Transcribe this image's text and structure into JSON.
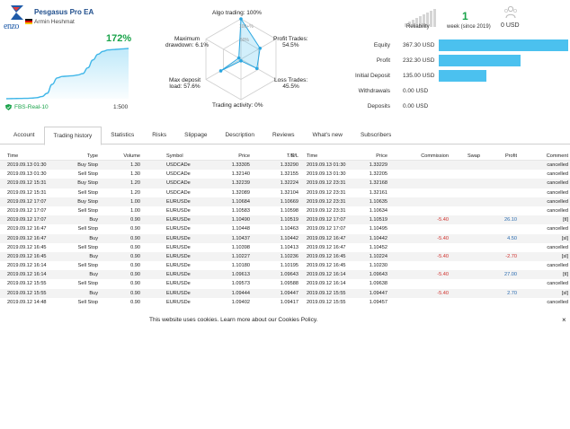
{
  "signal": {
    "title": "Pesgasus Pro EA",
    "author": "Armin Heshmat",
    "logo_text": "enzo",
    "growth": "172%",
    "broker": "FBS-Real-10",
    "leverage": "1:500",
    "growth_curve": [
      0,
      0.3,
      0.6,
      0.9,
      1.1,
      1.7,
      3,
      6,
      15,
      40,
      58,
      62,
      63,
      64,
      66,
      70,
      86,
      108,
      124,
      132,
      136,
      137,
      138,
      139,
      140
    ]
  },
  "radar": {
    "algo_trading": "Algo trading: 100%",
    "profit_trades": "Profit Trades:\n54.5%",
    "loss_trades": "Loss Trades:\n45.5%",
    "trading_activity": "Trading activity: 0%",
    "max_deposit_load": "Max deposit\nload: 57.6%",
    "max_drawdown": "Maximum\ndrawdown: 6.1%",
    "inner_label_100": "100+%",
    "inner_label_50": "50%",
    "values": [
      1.0,
      0.545,
      0.455,
      0.0,
      0.576,
      0.061
    ]
  },
  "summary": {
    "reliability": "Reliability",
    "weeks": "1",
    "weeks_label": "week (since 2019)",
    "subscribers_value": "0 USD"
  },
  "stats": [
    {
      "label": "Equity",
      "value": "367.30 USD",
      "fraction": 1.0
    },
    {
      "label": "Profit",
      "value": "232.30 USD",
      "fraction": 0.632
    },
    {
      "label": "Initial Deposit",
      "value": "135.00 USD",
      "fraction": 0.368
    },
    {
      "label": "Withdrawals",
      "value": "0.00 USD",
      "fraction": 0
    },
    {
      "label": "Deposits",
      "value": "0.00 USD",
      "fraction": 0
    }
  ],
  "tabs": [
    "Account",
    "Trading history",
    "Statistics",
    "Risks",
    "Slippage",
    "Description",
    "Reviews",
    "What's new",
    "Subscribers"
  ],
  "active_tab": 1,
  "table": {
    "headers": [
      "Time",
      "Type",
      "Volume",
      "Symbol",
      "Price",
      "S/L",
      "T/P",
      "Time",
      "Price",
      "Commission",
      "Swap",
      "Profit",
      "Comment"
    ],
    "rows": [
      [
        "2019.09.13 01:30",
        "Buy Stop",
        "1.30",
        "USDCADe",
        "1.33305",
        "1.33290",
        "",
        "2019.09.13 01:30",
        "1.33229",
        "",
        "",
        "",
        "cancelled"
      ],
      [
        "2019.09.13 01:30",
        "Sell Stop",
        "1.30",
        "USDCADe",
        "1.32140",
        "1.32155",
        "",
        "2019.09.13 01:30",
        "1.32205",
        "",
        "",
        "",
        "cancelled"
      ],
      [
        "2019.09.12 15:31",
        "Buy Stop",
        "1.20",
        "USDCADe",
        "1.32239",
        "1.32224",
        "",
        "2019.09.12 23:31",
        "1.32168",
        "",
        "",
        "",
        "cancelled"
      ],
      [
        "2019.09.12 15:31",
        "Sell Stop",
        "1.20",
        "USDCADe",
        "1.32089",
        "1.32104",
        "",
        "2019.09.12 23:31",
        "1.32161",
        "",
        "",
        "",
        "cancelled"
      ],
      [
        "2019.09.12 17:07",
        "Buy Stop",
        "1.00",
        "EURUSDe",
        "1.10684",
        "1.10669",
        "",
        "2019.09.12 23:31",
        "1.10635",
        "",
        "",
        "",
        "cancelled"
      ],
      [
        "2019.09.12 17:07",
        "Sell Stop",
        "1.00",
        "EURUSDe",
        "1.10583",
        "1.10598",
        "",
        "2019.09.12 23:31",
        "1.10634",
        "",
        "",
        "",
        "cancelled"
      ],
      [
        "2019.09.12 17:07",
        "Buy",
        "0.90",
        "EURUSDe",
        "1.10490",
        "1.10519",
        "",
        "2019.09.12 17:07",
        "1.10519",
        "-5.40",
        "",
        "26.10",
        "[tl]"
      ],
      [
        "2019.09.12 16:47",
        "Sell Stop",
        "0.90",
        "EURUSDe",
        "1.10448",
        "1.10463",
        "",
        "2019.09.12 17:07",
        "1.10495",
        "",
        "",
        "",
        "cancelled"
      ],
      [
        "2019.09.12 16:47",
        "Buy",
        "0.90",
        "EURUSDe",
        "1.10437",
        "1.10442",
        "",
        "2019.09.12 16:47",
        "1.10442",
        "-5.40",
        "",
        "4.50",
        "[sl]"
      ],
      [
        "2019.09.12 16:45",
        "Sell Stop",
        "0.90",
        "EURUSDe",
        "1.10398",
        "1.10413",
        "",
        "2019.09.12 16:47",
        "1.10452",
        "",
        "",
        "",
        "cancelled"
      ],
      [
        "2019.09.12 16:45",
        "Buy",
        "0.90",
        "EURUSDe",
        "1.10227",
        "1.10236",
        "",
        "2019.09.12 16:45",
        "1.10224",
        "-5.40",
        "",
        "-2.70",
        "[sl]"
      ],
      [
        "2019.09.12 16:14",
        "Sell Stop",
        "0.90",
        "EURUSDe",
        "1.10180",
        "1.10195",
        "",
        "2019.09.12 16:45",
        "1.10230",
        "",
        "",
        "",
        "cancelled"
      ],
      [
        "2019.09.12 16:14",
        "Buy",
        "0.90",
        "EURUSDe",
        "1.09613",
        "1.09643",
        "",
        "2019.09.12 16:14",
        "1.09643",
        "-5.40",
        "",
        "27.00",
        "[tl]"
      ],
      [
        "2019.09.12 15:55",
        "Sell Stop",
        "0.90",
        "EURUSDe",
        "1.09573",
        "1.09588",
        "",
        "2019.09.12 16:14",
        "1.09638",
        "",
        "",
        "",
        "cancelled"
      ],
      [
        "2019.09.12 15:55",
        "Buy",
        "0.90",
        "EURUSDe",
        "1.09444",
        "1.09447",
        "",
        "2019.09.12 15:55",
        "1.09447",
        "-5.40",
        "",
        "2.70",
        "[sl]"
      ],
      [
        "2019.09.12 14:48",
        "Sell Stop",
        "0.90",
        "EURUSDe",
        "1.09402",
        "1.09417",
        "",
        "2019.09.12 15:55",
        "1.09457",
        "",
        "",
        "",
        "cancelled"
      ]
    ]
  },
  "cookie": {
    "text": "This website uses cookies. Learn more about our Cookies Policy.",
    "close": "×"
  }
}
